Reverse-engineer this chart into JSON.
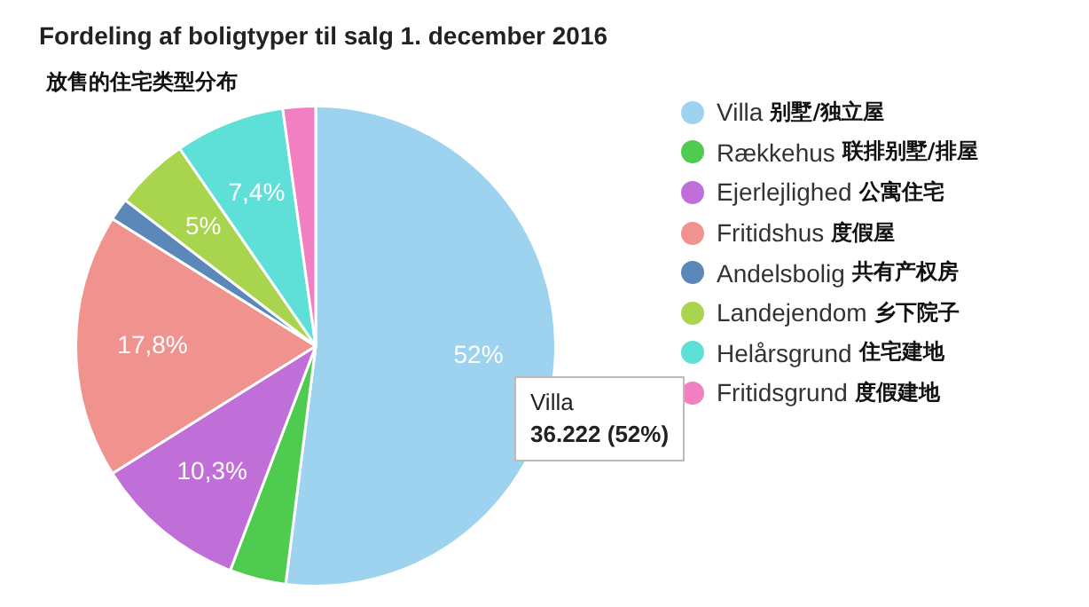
{
  "chart_data": {
    "type": "pie",
    "title": "Fordeling af boligtyper til salg 1. december 2016",
    "subtitle": "放售的住宅类型分布",
    "categories": [
      "Villa 别墅/独立屋",
      "Rækkehus 联排别墅/排屋",
      "Ejerlejlighed 公寓住宅",
      "Fritidshus 度假屋",
      "Andelsbolig 共有产权房",
      "Landejendom 乡下院子",
      "Helårsgrund 住宅建地",
      "Fritidsgrund 度假建地"
    ],
    "values": [
      52,
      3.8,
      10.3,
      17.8,
      1.5,
      5,
      7.4,
      2.2
    ],
    "value_labels": [
      "52%",
      null,
      "10,3%",
      "17,8%",
      null,
      "5%",
      "7,4%",
      null
    ],
    "colors": [
      "#9dd3ee",
      "#4fcc4f",
      "#c06fd8",
      "#f0928e",
      "#5b88b8",
      "#a8d44e",
      "#5ee0d8",
      "#f27fc2"
    ],
    "annotations": [
      "Villa\n36.222 (52%)"
    ],
    "legend": "right"
  }
}
